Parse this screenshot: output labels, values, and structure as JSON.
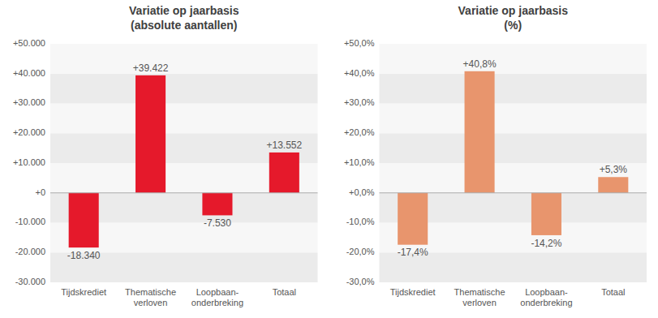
{
  "chart_data": [
    {
      "type": "bar",
      "title": "Variatie op jaarbasis\n(absolute aantallen)",
      "categories": [
        "Tijdskrediet",
        "Thematische\nverloven",
        "Loopbaan-\nonderbreking",
        "Totaal"
      ],
      "values": [
        -18340,
        39422,
        -7530,
        13552
      ],
      "value_labels": [
        "-18.340",
        "+39.422",
        "-7.530",
        "+13.552"
      ],
      "color": "#e5192b",
      "ylim": [
        -30000,
        50000
      ],
      "yticks": [
        {
          "value": -30000,
          "label": "-30.000"
        },
        {
          "value": -20000,
          "label": "-20.000"
        },
        {
          "value": -10000,
          "label": "-10.000"
        },
        {
          "value": 0,
          "label": "+0"
        },
        {
          "value": 10000,
          "label": "+10.000"
        },
        {
          "value": 20000,
          "label": "+20.000"
        },
        {
          "value": 30000,
          "label": "+30.000"
        },
        {
          "value": 40000,
          "label": "+40.000"
        },
        {
          "value": 50000,
          "label": "+50.000"
        }
      ],
      "grid": true,
      "data_labels": true
    },
    {
      "type": "bar",
      "title": "Variatie op jaarbasis\n(%)",
      "categories": [
        "Tijdskrediet",
        "Thematische\nverloven",
        "Loopbaan-\nonderbreking",
        "Totaal"
      ],
      "values": [
        -17.4,
        40.8,
        -14.2,
        5.3
      ],
      "value_labels": [
        "-17,4%",
        "+40,8%",
        "-14,2%",
        "+5,3%"
      ],
      "color": "#e8956d",
      "ylim": [
        -30,
        50
      ],
      "yticks": [
        {
          "value": -30,
          "label": "-30,0%"
        },
        {
          "value": -20,
          "label": "-20,0%"
        },
        {
          "value": -10,
          "label": "-10,0%"
        },
        {
          "value": 0,
          "label": "+0,0%"
        },
        {
          "value": 10,
          "label": "+10,0%"
        },
        {
          "value": 20,
          "label": "+20,0%"
        },
        {
          "value": 30,
          "label": "+30,0%"
        },
        {
          "value": 40,
          "label": "+40,0%"
        },
        {
          "value": 50,
          "label": "+50,0%"
        }
      ],
      "grid": true,
      "data_labels": true
    }
  ]
}
